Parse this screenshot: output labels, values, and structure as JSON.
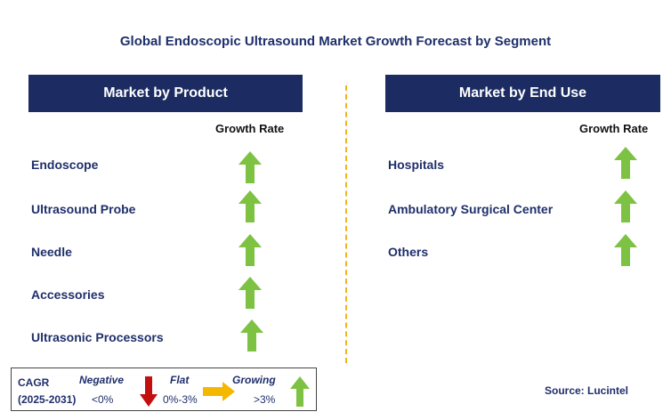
{
  "title": "Global Endoscopic Ultrasound Market Growth Forecast by Segment",
  "left_panel": {
    "header": "Market by Product",
    "growth_label": "Growth Rate",
    "rows": [
      {
        "label": "Endoscope",
        "trend": "growing"
      },
      {
        "label": "Ultrasound Probe",
        "trend": "growing"
      },
      {
        "label": "Needle",
        "trend": "growing"
      },
      {
        "label": "Accessories",
        "trend": "growing"
      },
      {
        "label": "Ultrasonic Processors",
        "trend": "growing"
      }
    ]
  },
  "right_panel": {
    "header": "Market by End Use",
    "growth_label": "Growth Rate",
    "rows": [
      {
        "label": "Hospitals",
        "trend": "growing"
      },
      {
        "label": "Ambulatory Surgical Center",
        "trend": "growing"
      },
      {
        "label": "Others",
        "trend": "growing"
      }
    ]
  },
  "legend": {
    "cagr": "CAGR",
    "period": "(2025-2031)",
    "negative": {
      "label": "Negative",
      "range": "<0%"
    },
    "flat": {
      "label": "Flat",
      "range": "0%-3%"
    },
    "growing": {
      "label": "Growing",
      "range": ">3%"
    }
  },
  "colors": {
    "header_bg": "#1c2c62",
    "growing_arrow": "#7dc243",
    "negative_arrow": "#c40f0f",
    "flat_arrow": "#f5b800",
    "divider": "#f0b41e"
  },
  "source": "Source: Lucintel"
}
